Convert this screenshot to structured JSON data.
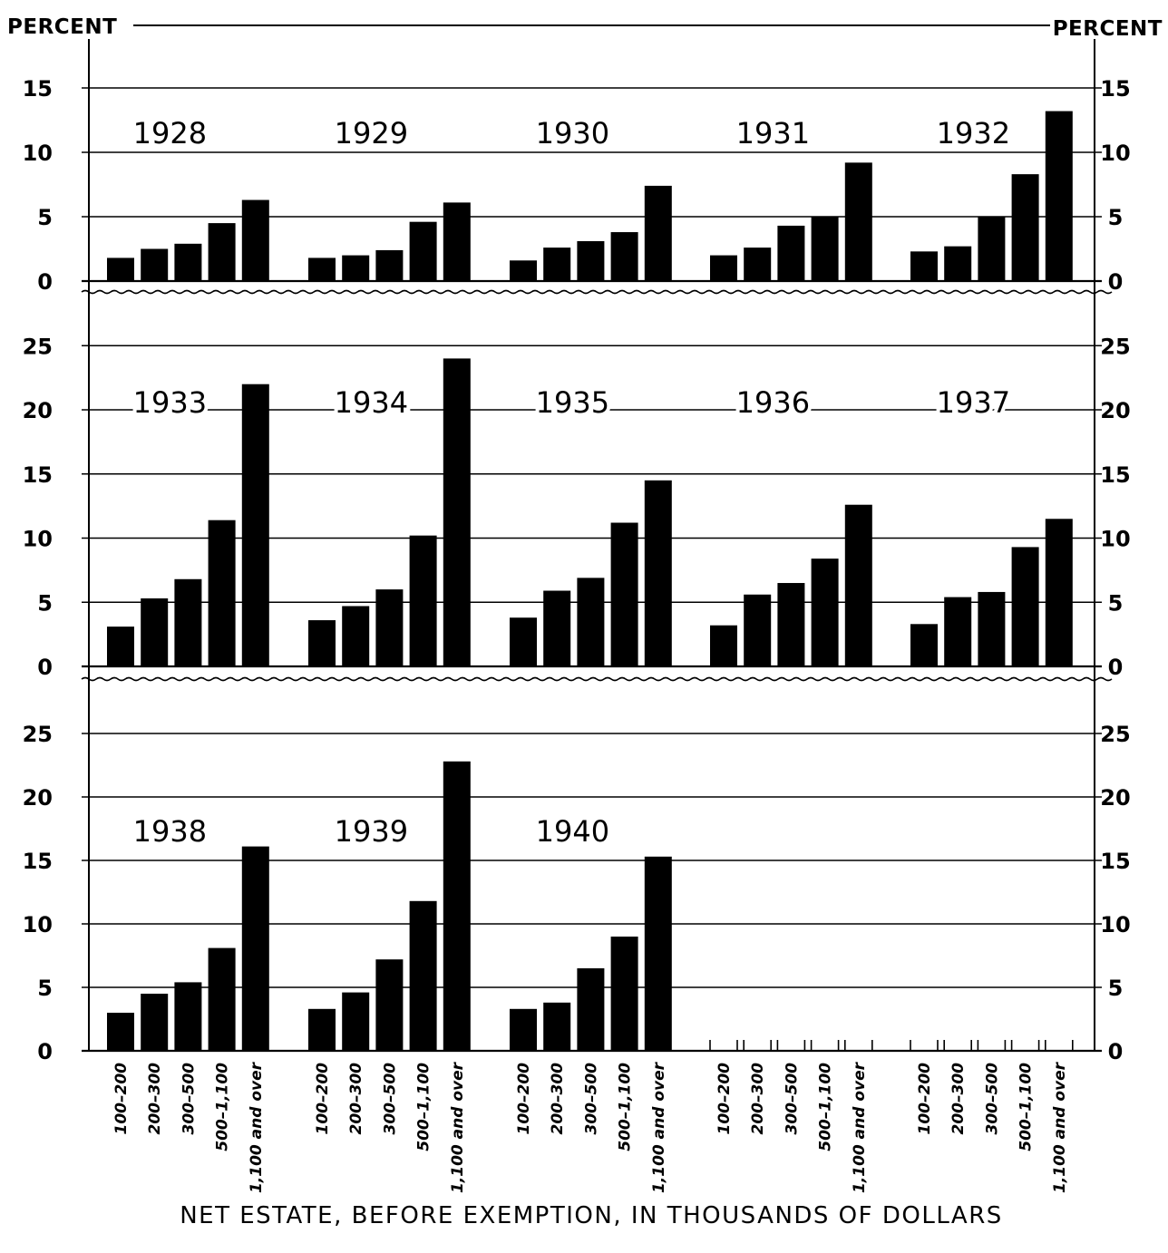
{
  "chart_data": {
    "type": "bar",
    "y_axis_label_left": "PERCENT",
    "y_axis_label_right": "PERCENT",
    "xlabel": "NET ESTATE, BEFORE EXEMPTION, IN THOUSANDS OF DOLLARS",
    "categories": [
      "100-200",
      "200-300",
      "300-500",
      "500-1,100",
      "1,100 and over"
    ],
    "grid": true,
    "panels": [
      {
        "ylim": [
          0,
          18
        ],
        "yticks": [
          0,
          5,
          10,
          15
        ],
        "series": [
          {
            "name": "1928",
            "values": [
              1.8,
              2.5,
              2.9,
              4.5,
              6.3
            ]
          },
          {
            "name": "1929",
            "values": [
              1.8,
              2.0,
              2.4,
              4.6,
              6.1
            ]
          },
          {
            "name": "1930",
            "values": [
              1.6,
              2.6,
              3.1,
              3.8,
              7.4
            ]
          },
          {
            "name": "1931",
            "values": [
              2.0,
              2.6,
              4.3,
              5.0,
              9.2
            ]
          },
          {
            "name": "1932",
            "values": [
              2.3,
              2.7,
              5.0,
              8.3,
              13.2
            ]
          }
        ]
      },
      {
        "ylim": [
          0,
          28
        ],
        "yticks": [
          0,
          5,
          10,
          15,
          20,
          25
        ],
        "series": [
          {
            "name": "1933",
            "values": [
              3.1,
              5.3,
              6.8,
              11.4,
              22.0
            ]
          },
          {
            "name": "1934",
            "values": [
              3.6,
              4.7,
              6.0,
              10.2,
              24.0
            ]
          },
          {
            "name": "1935",
            "values": [
              3.8,
              5.9,
              6.9,
              11.2,
              14.5
            ]
          },
          {
            "name": "1936",
            "values": [
              3.2,
              5.6,
              6.5,
              8.4,
              12.6
            ]
          },
          {
            "name": "1937",
            "values": [
              3.3,
              5.4,
              5.8,
              9.3,
              11.5
            ]
          }
        ]
      },
      {
        "ylim": [
          0,
          28
        ],
        "yticks": [
          0,
          5,
          10,
          15,
          20,
          25
        ],
        "series": [
          {
            "name": "1938",
            "values": [
              3.0,
              4.5,
              5.4,
              8.1,
              16.1
            ]
          },
          {
            "name": "1939",
            "values": [
              3.3,
              4.6,
              7.2,
              11.8,
              22.8
            ]
          },
          {
            "name": "1940",
            "values": [
              3.3,
              3.8,
              6.5,
              9.0,
              15.3
            ]
          },
          {
            "name": "",
            "values": [
              0,
              0,
              0,
              0,
              0
            ]
          },
          {
            "name": "",
            "values": [
              0,
              0,
              0,
              0,
              0
            ]
          }
        ]
      }
    ]
  }
}
